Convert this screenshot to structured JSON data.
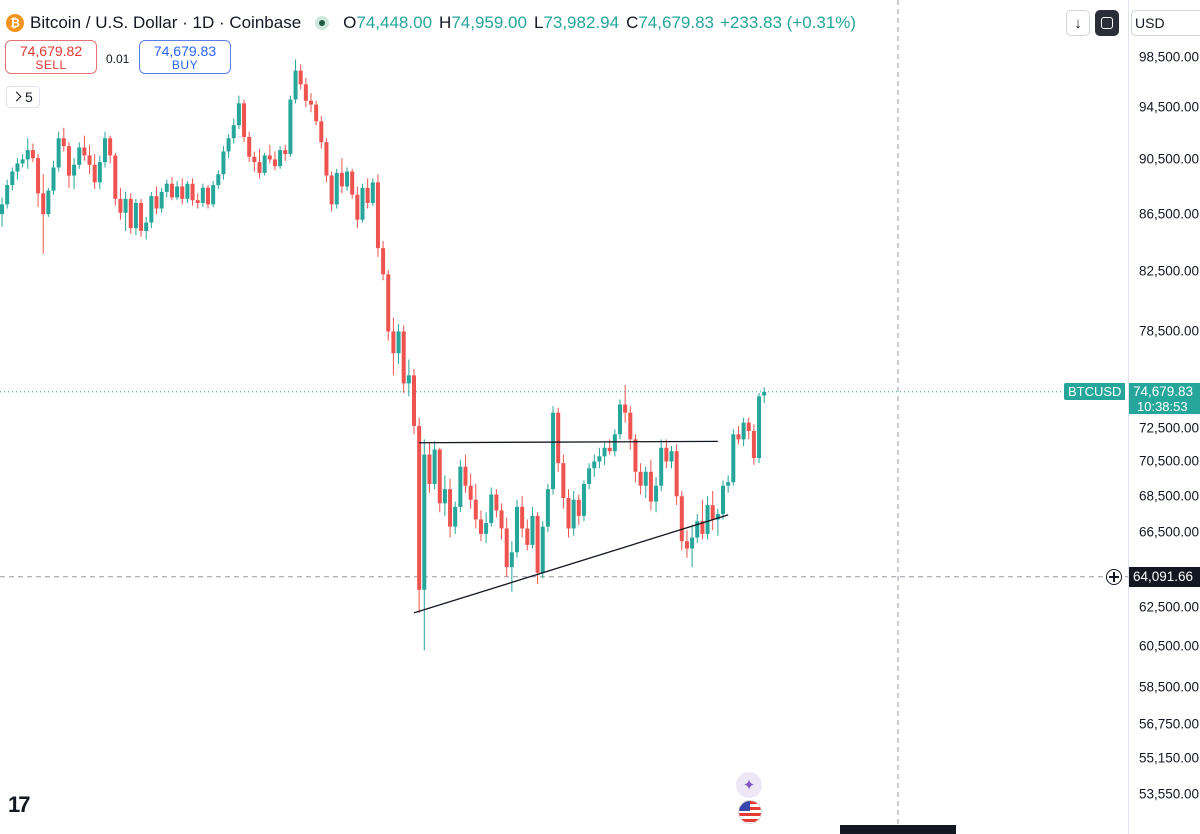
{
  "header": {
    "coin_icon": "bitcoin-icon",
    "title": "Bitcoin / U.S. Dollar · 1D · Coinbase",
    "ohlc": [
      {
        "label": "O",
        "value": "74,448.00"
      },
      {
        "label": "H",
        "value": "74,959.00"
      },
      {
        "label": "L",
        "value": "73,982.94"
      },
      {
        "label": "C",
        "value": "74,679.83"
      }
    ],
    "change": "+233.83 (+0.31%)"
  },
  "trade": {
    "sell_price": "74,679.82",
    "sell_label": "SELL",
    "spread": "0.01",
    "buy_price": "74,679.83",
    "buy_label": "BUY"
  },
  "interval_button": "5",
  "toolbar": {
    "currency": "USD",
    "download_icon": "arrow-down-icon",
    "fit_icon": "rounded-square-icon"
  },
  "last_price": {
    "symbol": "BTCUSD",
    "price": "74,679.83",
    "countdown": "10:38:53"
  },
  "crosshair": {
    "price": "64,091.66",
    "value": 64091.66
  },
  "icons": {
    "logo": "tradingview-logo",
    "ai": "sparkle-icon",
    "flag": "us-flag-icon"
  },
  "colors": {
    "up": "#26a69a",
    "down": "#ef5350",
    "last_price": "#26a69a"
  },
  "chart_data": {
    "type": "candlestick",
    "price_scale": "log",
    "y_ticks": [
      {
        "label": "98,500.00",
        "value": 98500
      },
      {
        "label": "94,500.00",
        "value": 94500
      },
      {
        "label": "90,500.00",
        "value": 90500
      },
      {
        "label": "86,500.00",
        "value": 86500
      },
      {
        "label": "82,500.00",
        "value": 82500
      },
      {
        "label": "78,500.00",
        "value": 78500
      },
      {
        "label": "72,500.00",
        "value": 72500
      },
      {
        "label": "70,500.00",
        "value": 70500
      },
      {
        "label": "68,500.00",
        "value": 68500
      },
      {
        "label": "66,500.00",
        "value": 66500
      },
      {
        "label": "62,500.00",
        "value": 62500
      },
      {
        "label": "60,500.00",
        "value": 60500
      },
      {
        "label": "58,500.00",
        "value": 58500
      },
      {
        "label": "56,750.00",
        "value": 56750
      },
      {
        "label": "55,150.00",
        "value": 55150
      },
      {
        "label": "53,550.00",
        "value": 53550
      }
    ],
    "ylim": [
      53000,
      100000
    ],
    "last_price": 74679.83,
    "candles": [
      [
        86500,
        87700,
        85600,
        87200
      ],
      [
        87200,
        89000,
        86900,
        88600
      ],
      [
        88600,
        89900,
        88200,
        89600
      ],
      [
        89600,
        90600,
        89000,
        90200
      ],
      [
        90200,
        90900,
        89900,
        90500
      ],
      [
        90500,
        92100,
        89800,
        91200
      ],
      [
        91200,
        91700,
        90300,
        90600
      ],
      [
        90600,
        90900,
        87000,
        88000
      ],
      [
        88000,
        89400,
        83700,
        86500
      ],
      [
        86500,
        88400,
        86300,
        88200
      ],
      [
        88200,
        90400,
        87900,
        89900
      ],
      [
        89900,
        92600,
        89600,
        92100
      ],
      [
        92100,
        92900,
        91100,
        91500
      ],
      [
        91500,
        91800,
        88400,
        89300
      ],
      [
        89300,
        90600,
        88300,
        90100
      ],
      [
        90100,
        91800,
        89800,
        91400
      ],
      [
        91400,
        92300,
        90400,
        90800
      ],
      [
        90800,
        91600,
        89400,
        90100
      ],
      [
        90100,
        90900,
        88300,
        88800
      ],
      [
        88800,
        90800,
        88300,
        90300
      ],
      [
        90300,
        92600,
        89900,
        92100
      ],
      [
        92100,
        92300,
        90200,
        90800
      ],
      [
        90800,
        91000,
        87100,
        87600
      ],
      [
        87600,
        88400,
        86100,
        86600
      ],
      [
        86600,
        88100,
        85300,
        87600
      ],
      [
        87600,
        88000,
        85100,
        85500
      ],
      [
        85500,
        87600,
        85000,
        87300
      ],
      [
        87300,
        87600,
        84900,
        85300
      ],
      [
        85300,
        86300,
        84700,
        85900
      ],
      [
        85900,
        88100,
        85500,
        87800
      ],
      [
        87800,
        88500,
        86500,
        86900
      ],
      [
        86900,
        88400,
        86600,
        88100
      ],
      [
        88100,
        89000,
        87700,
        88700
      ],
      [
        88700,
        89200,
        87500,
        87700
      ],
      [
        87700,
        88900,
        87500,
        88500
      ],
      [
        88500,
        89100,
        87200,
        87600
      ],
      [
        87600,
        88900,
        87300,
        88700
      ],
      [
        88700,
        89100,
        87100,
        87500
      ],
      [
        87500,
        88000,
        86900,
        87300
      ],
      [
        87300,
        88700,
        87000,
        88400
      ],
      [
        88400,
        88600,
        86900,
        87200
      ],
      [
        87200,
        88900,
        87000,
        88600
      ],
      [
        88600,
        89700,
        88300,
        89400
      ],
      [
        89400,
        91500,
        89000,
        91100
      ],
      [
        91100,
        92400,
        90600,
        92100
      ],
      [
        92100,
        93600,
        91700,
        93100
      ],
      [
        93100,
        95400,
        92800,
        94800
      ],
      [
        94800,
        95100,
        91800,
        92200
      ],
      [
        92200,
        92600,
        90300,
        90700
      ],
      [
        90700,
        91100,
        89600,
        90300
      ],
      [
        90300,
        91300,
        89100,
        89500
      ],
      [
        89500,
        91000,
        89300,
        90800
      ],
      [
        90800,
        91600,
        90200,
        90500
      ],
      [
        90500,
        91100,
        89700,
        90000
      ],
      [
        90000,
        91500,
        89800,
        91200
      ],
      [
        91200,
        91600,
        90400,
        90900
      ],
      [
        90900,
        95400,
        90700,
        95100
      ],
      [
        95100,
        98300,
        94800,
        97400
      ],
      [
        97400,
        97900,
        95900,
        96300
      ],
      [
        96300,
        96800,
        94500,
        95000
      ],
      [
        95000,
        95600,
        94100,
        94700
      ],
      [
        94700,
        95000,
        93100,
        93400
      ],
      [
        93400,
        93800,
        91300,
        91800
      ],
      [
        91800,
        92100,
        88800,
        89300
      ],
      [
        89300,
        89600,
        86700,
        87200
      ],
      [
        87200,
        89800,
        86900,
        89500
      ],
      [
        89500,
        90600,
        88000,
        88500
      ],
      [
        88500,
        89900,
        88200,
        89600
      ],
      [
        89600,
        89800,
        87600,
        87900
      ],
      [
        87900,
        88500,
        85500,
        86100
      ],
      [
        86100,
        88700,
        85900,
        88400
      ],
      [
        88400,
        89100,
        86900,
        87300
      ],
      [
        87300,
        89100,
        87100,
        88800
      ],
      [
        88800,
        89400,
        83500,
        84100
      ],
      [
        84100,
        84600,
        81900,
        82300
      ],
      [
        82300,
        82600,
        77900,
        78500
      ],
      [
        78500,
        79400,
        75700,
        77100
      ],
      [
        77100,
        79000,
        76400,
        78500
      ],
      [
        78500,
        78900,
        74600,
        75200
      ],
      [
        75200,
        76700,
        74400,
        75700
      ],
      [
        75700,
        76100,
        72100,
        72600
      ],
      [
        72600,
        73100,
        62200,
        63400
      ],
      [
        63400,
        71800,
        60300,
        70900
      ],
      [
        70900,
        71600,
        68700,
        69200
      ],
      [
        69200,
        71700,
        68900,
        71200
      ],
      [
        71200,
        71300,
        67600,
        68100
      ],
      [
        68100,
        69700,
        67400,
        68900
      ],
      [
        68900,
        69500,
        66200,
        66800
      ],
      [
        66800,
        68200,
        66400,
        67900
      ],
      [
        67900,
        70600,
        67600,
        70200
      ],
      [
        70200,
        70900,
        68700,
        69100
      ],
      [
        69100,
        69800,
        67800,
        68300
      ],
      [
        68300,
        69200,
        66700,
        67200
      ],
      [
        67200,
        67700,
        66000,
        66400
      ],
      [
        66400,
        67600,
        65900,
        67000
      ],
      [
        67000,
        69000,
        66800,
        68600
      ],
      [
        68600,
        68900,
        67300,
        67700
      ],
      [
        67700,
        68100,
        66100,
        66700
      ],
      [
        66700,
        67300,
        64100,
        64600
      ],
      [
        64600,
        66000,
        63300,
        65400
      ],
      [
        65400,
        68300,
        65100,
        67900
      ],
      [
        67900,
        68500,
        66200,
        66700
      ],
      [
        66700,
        67200,
        65500,
        65800
      ],
      [
        65800,
        67900,
        65600,
        67400
      ],
      [
        67400,
        67600,
        63700,
        64300
      ],
      [
        64300,
        67100,
        64000,
        66800
      ],
      [
        66800,
        69200,
        66500,
        68900
      ],
      [
        68900,
        73800,
        68600,
        73400
      ],
      [
        73400,
        73700,
        69900,
        70400
      ],
      [
        70400,
        70900,
        67800,
        68400
      ],
      [
        68400,
        68900,
        66200,
        66700
      ],
      [
        66700,
        68800,
        66300,
        68300
      ],
      [
        68300,
        68600,
        66900,
        67400
      ],
      [
        67400,
        69400,
        67100,
        69200
      ],
      [
        69200,
        70400,
        68900,
        70100
      ],
      [
        70100,
        70900,
        69600,
        70500
      ],
      [
        70500,
        71300,
        70100,
        70800
      ],
      [
        70800,
        71600,
        70300,
        71300
      ],
      [
        71300,
        71800,
        70900,
        71100
      ],
      [
        71100,
        72400,
        70800,
        72100
      ],
      [
        72100,
        74200,
        71800,
        73900
      ],
      [
        73900,
        75100,
        72800,
        73400
      ],
      [
        73400,
        73800,
        71200,
        71800
      ],
      [
        71800,
        72100,
        69300,
        69900
      ],
      [
        69900,
        70400,
        68600,
        69100
      ],
      [
        69100,
        70200,
        68400,
        69900
      ],
      [
        69900,
        70600,
        67700,
        68200
      ],
      [
        68200,
        69600,
        67600,
        69100
      ],
      [
        69100,
        71800,
        68800,
        71300
      ],
      [
        71300,
        71800,
        70100,
        70500
      ],
      [
        70500,
        71400,
        70100,
        71100
      ],
      [
        71100,
        71500,
        68000,
        68500
      ],
      [
        68500,
        68800,
        65500,
        66000
      ],
      [
        66000,
        66600,
        65100,
        65600
      ],
      [
        65600,
        66900,
        64600,
        66200
      ],
      [
        66200,
        67500,
        65900,
        67100
      ],
      [
        67100,
        68300,
        66100,
        66400
      ],
      [
        66400,
        68500,
        66100,
        68000
      ],
      [
        68000,
        68800,
        66600,
        67200
      ],
      [
        67200,
        67800,
        66300,
        67500
      ],
      [
        67500,
        69400,
        67200,
        69100
      ],
      [
        69100,
        69700,
        68700,
        69300
      ],
      [
        69300,
        72400,
        69100,
        72100
      ],
      [
        72100,
        72600,
        71500,
        71800
      ],
      [
        71800,
        73100,
        71400,
        72800
      ],
      [
        72800,
        73100,
        71800,
        72300
      ],
      [
        72300,
        72700,
        70300,
        70700
      ],
      [
        70700,
        74600,
        70400,
        74400
      ],
      [
        74448,
        74959,
        73982.94,
        74679.83
      ]
    ],
    "trendlines": [
      {
        "name": "resistance",
        "points": [
          [
            81,
            71600
          ],
          [
            139,
            71680
          ]
        ]
      },
      {
        "name": "support",
        "points": [
          [
            80,
            62200
          ],
          [
            141,
            67450
          ]
        ]
      }
    ]
  }
}
